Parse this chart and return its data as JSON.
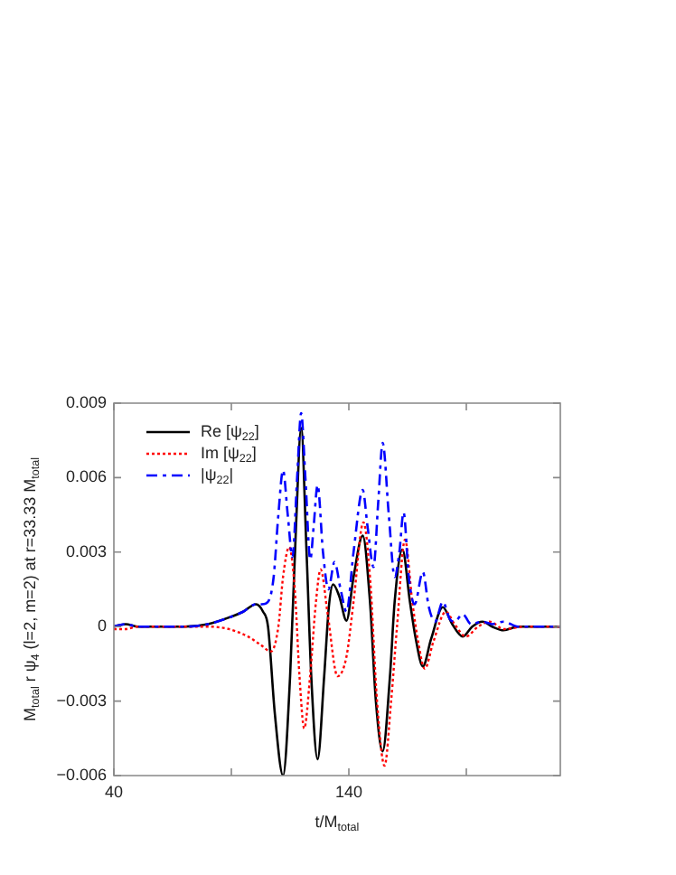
{
  "chart_data": {
    "type": "line",
    "xlabel": "t/M$_{total}$",
    "ylabel": "M$_{total}$ r ψ$_{4}$ (l=2, m=2) at r=33.33 M$_{total}$",
    "xlim": [
      40,
      230
    ],
    "xticks": [
      40,
      {
        "value": 90,
        "label": null
      },
      140,
      {
        "value": 190,
        "label": null
      }
    ],
    "ylim": [
      -0.006,
      0.009
    ],
    "yticks": [
      {
        "value": -0.006,
        "label": "−0.006"
      },
      {
        "value": -0.003,
        "label": "−0.003"
      },
      0,
      0.003,
      0.006,
      0.009
    ],
    "grid": false,
    "legend": "top left",
    "marker": "none",
    "series": [
      {
        "name": "Re [ψ$_{22}$]",
        "color": "#000000",
        "line_style": "solid",
        "x": [
          40,
          45,
          50,
          60,
          70,
          80,
          90,
          95,
          100.5,
          103.5,
          105.6,
          108.5,
          112,
          115,
          117.5,
          119.7,
          122,
          124,
          126.7,
          129.5,
          131.5,
          133.3,
          136,
          139,
          142,
          145.9,
          149,
          151.5,
          154.4,
          157.5,
          159.5,
          162.8,
          166,
          168.5,
          171.5,
          175,
          180,
          184,
          188.5,
          192.5,
          196.9,
          201,
          205.8,
          212,
          220,
          230
        ],
        "values": [
          0,
          0.0001,
          0,
          0,
          0,
          0.0001,
          0.0004,
          0.0006,
          0.0009,
          0.0006,
          0,
          -0.0035,
          -0.006,
          -0.002,
          0.004,
          0.008,
          0.003,
          -0.002,
          -0.00534,
          -0.002,
          0.0008,
          0.0017,
          0.0012,
          0.00024,
          0.002,
          0.00366,
          0.001,
          -0.003,
          -0.00502,
          -0.002,
          0.001,
          0.0031,
          0.001,
          -0.0005,
          -0.0016,
          -0.0005,
          0.00078,
          0.0001,
          -0.0004,
          0,
          0.0002,
          0,
          -0.00015,
          0,
          0,
          0
        ]
      },
      {
        "name": "Im [ψ$_{22}$]",
        "color": "#ff0000",
        "line_style": "dotted",
        "x": [
          40,
          45,
          50,
          60,
          70,
          80,
          89,
          97,
          102,
          106.9,
          110,
          112,
          114.6,
          117,
          119,
          121,
          123.5,
          126,
          128,
          131,
          135.2,
          139,
          142,
          146.2,
          149,
          152,
          155.2,
          158,
          160.5,
          163.9,
          167,
          169.5,
          172.3,
          176,
          181.3,
          185,
          189.8,
          195,
          200,
          206,
          215,
          230
        ],
        "values": [
          -0.0001,
          -0.0001,
          0,
          0,
          0,
          0,
          -0.0001,
          -0.0004,
          -0.0007,
          -0.001,
          0,
          0.002,
          0.0032,
          0.0015,
          -0.002,
          -0.0041,
          -0.002,
          0.001,
          0.0023,
          0.0005,
          -0.002,
          -0.0012,
          0.001,
          0.0042,
          0.002,
          -0.003,
          -0.0056,
          -0.003,
          0,
          0.0035,
          0.001,
          -0.0006,
          -0.0017,
          -0.0006,
          0.0006,
          0.0001,
          -0.0004,
          0,
          0.0002,
          -0.0001,
          0,
          0
        ]
      },
      {
        "name": "|ψ$_{22}$|",
        "color": "#0000ff",
        "line_style": "dashed",
        "x": [
          40,
          45,
          50,
          60,
          70,
          80,
          90,
          95,
          100.5,
          103,
          105.6,
          108,
          110,
          112,
          114,
          116,
          118,
          119.7,
          121.5,
          123.6,
          125,
          126.7,
          129,
          131.3,
          133.9,
          136.5,
          139,
          142,
          145.9,
          148,
          150.5,
          152.5,
          154.4,
          157,
          159.5,
          161.5,
          163.3,
          165.5,
          168,
          171.5,
          174,
          176.7,
          180,
          183,
          185,
          188.5,
          192,
          196.9,
          201,
          205.8,
          212,
          220,
          230
        ],
        "values": [
          0,
          0.0001,
          0,
          0,
          0,
          0.0001,
          0.0004,
          0.0006,
          0.0009,
          0.0009,
          0.001,
          0.002,
          0.0045,
          0.0063,
          0.0045,
          0.0028,
          0.006,
          0.0086,
          0.006,
          0.0027,
          0.004,
          0.0057,
          0.003,
          0.0015,
          0.0026,
          0.0015,
          0.0006,
          0.003,
          0.0055,
          0.004,
          0.0024,
          0.005,
          0.0074,
          0.0045,
          0.002,
          0.003,
          0.0046,
          0.002,
          0.0009,
          0.0022,
          0.0008,
          0.0002,
          0.001,
          0.0003,
          0.0002,
          0.0005,
          0.0001,
          0.0002,
          0.0001,
          0.0002,
          0,
          0,
          0
        ]
      }
    ]
  }
}
